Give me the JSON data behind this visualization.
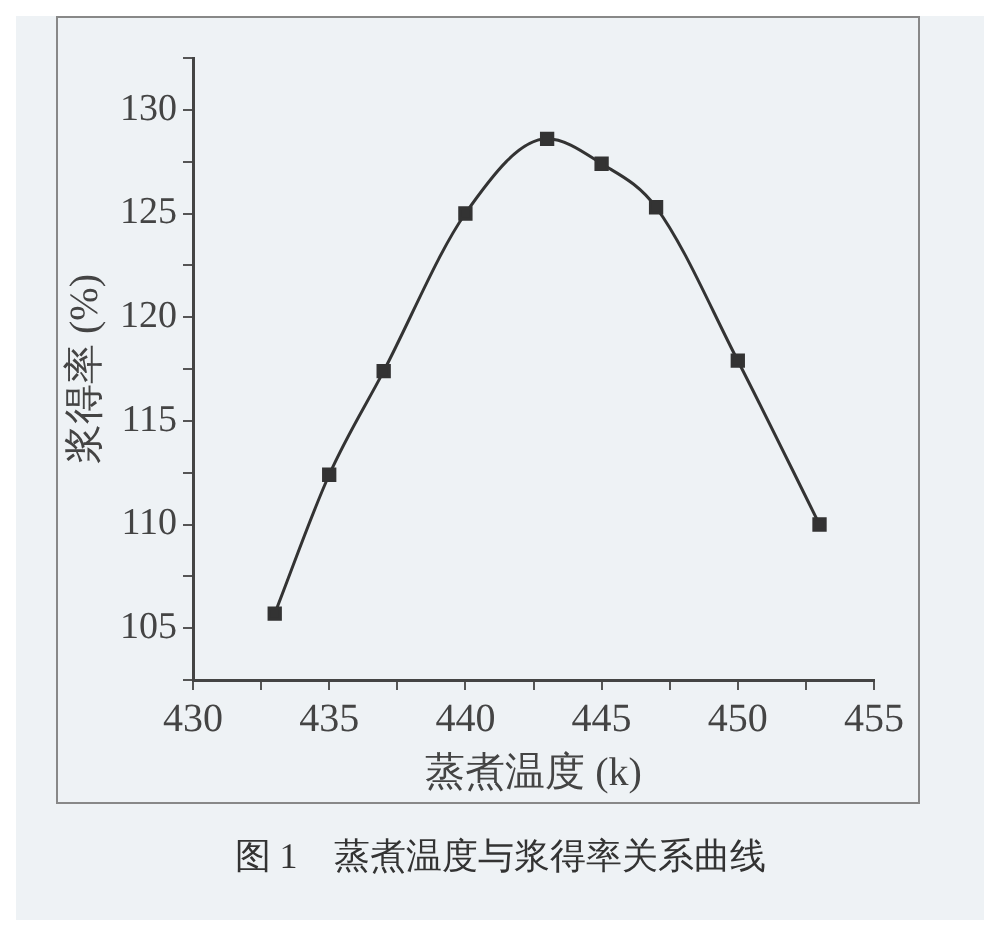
{
  "chart_data": {
    "type": "line",
    "title": "图 1　蒸煮温度与浆得率关系曲线",
    "xlabel": "蒸煮温度 (k)",
    "ylabel": "浆得率 (%)",
    "x": [
      433,
      435,
      437,
      440,
      443,
      445,
      447,
      450,
      453
    ],
    "series": [
      {
        "color": "#333333",
        "values": [
          105.7,
          112.4,
          117.4,
          125.0,
          128.6,
          127.4,
          125.3,
          117.9,
          110.0
        ]
      }
    ],
    "xlim": [
      430,
      455
    ],
    "xticks": [
      430,
      {
        "value": 432.5,
        "label": null
      },
      435,
      {
        "value": 437.5,
        "label": null
      },
      440,
      {
        "value": 442.5,
        "label": null
      },
      445,
      {
        "value": 447.5,
        "label": null
      },
      450,
      {
        "value": 452.5,
        "label": null
      },
      455
    ],
    "ylim": [
      102.5,
      132.5
    ],
    "yticks": [
      {
        "value": 102.5,
        "label": null
      },
      105,
      {
        "value": 107.5,
        "label": null
      },
      110,
      {
        "value": 112.5,
        "label": null
      },
      115,
      {
        "value": 117.5,
        "label": null
      },
      120,
      {
        "value": 122.5,
        "label": null
      },
      125,
      {
        "value": 127.5,
        "label": null
      },
      130,
      {
        "value": 132.5,
        "label": null
      }
    ],
    "grid": false,
    "legend": false,
    "marker": "square",
    "line_style": "solid"
  }
}
